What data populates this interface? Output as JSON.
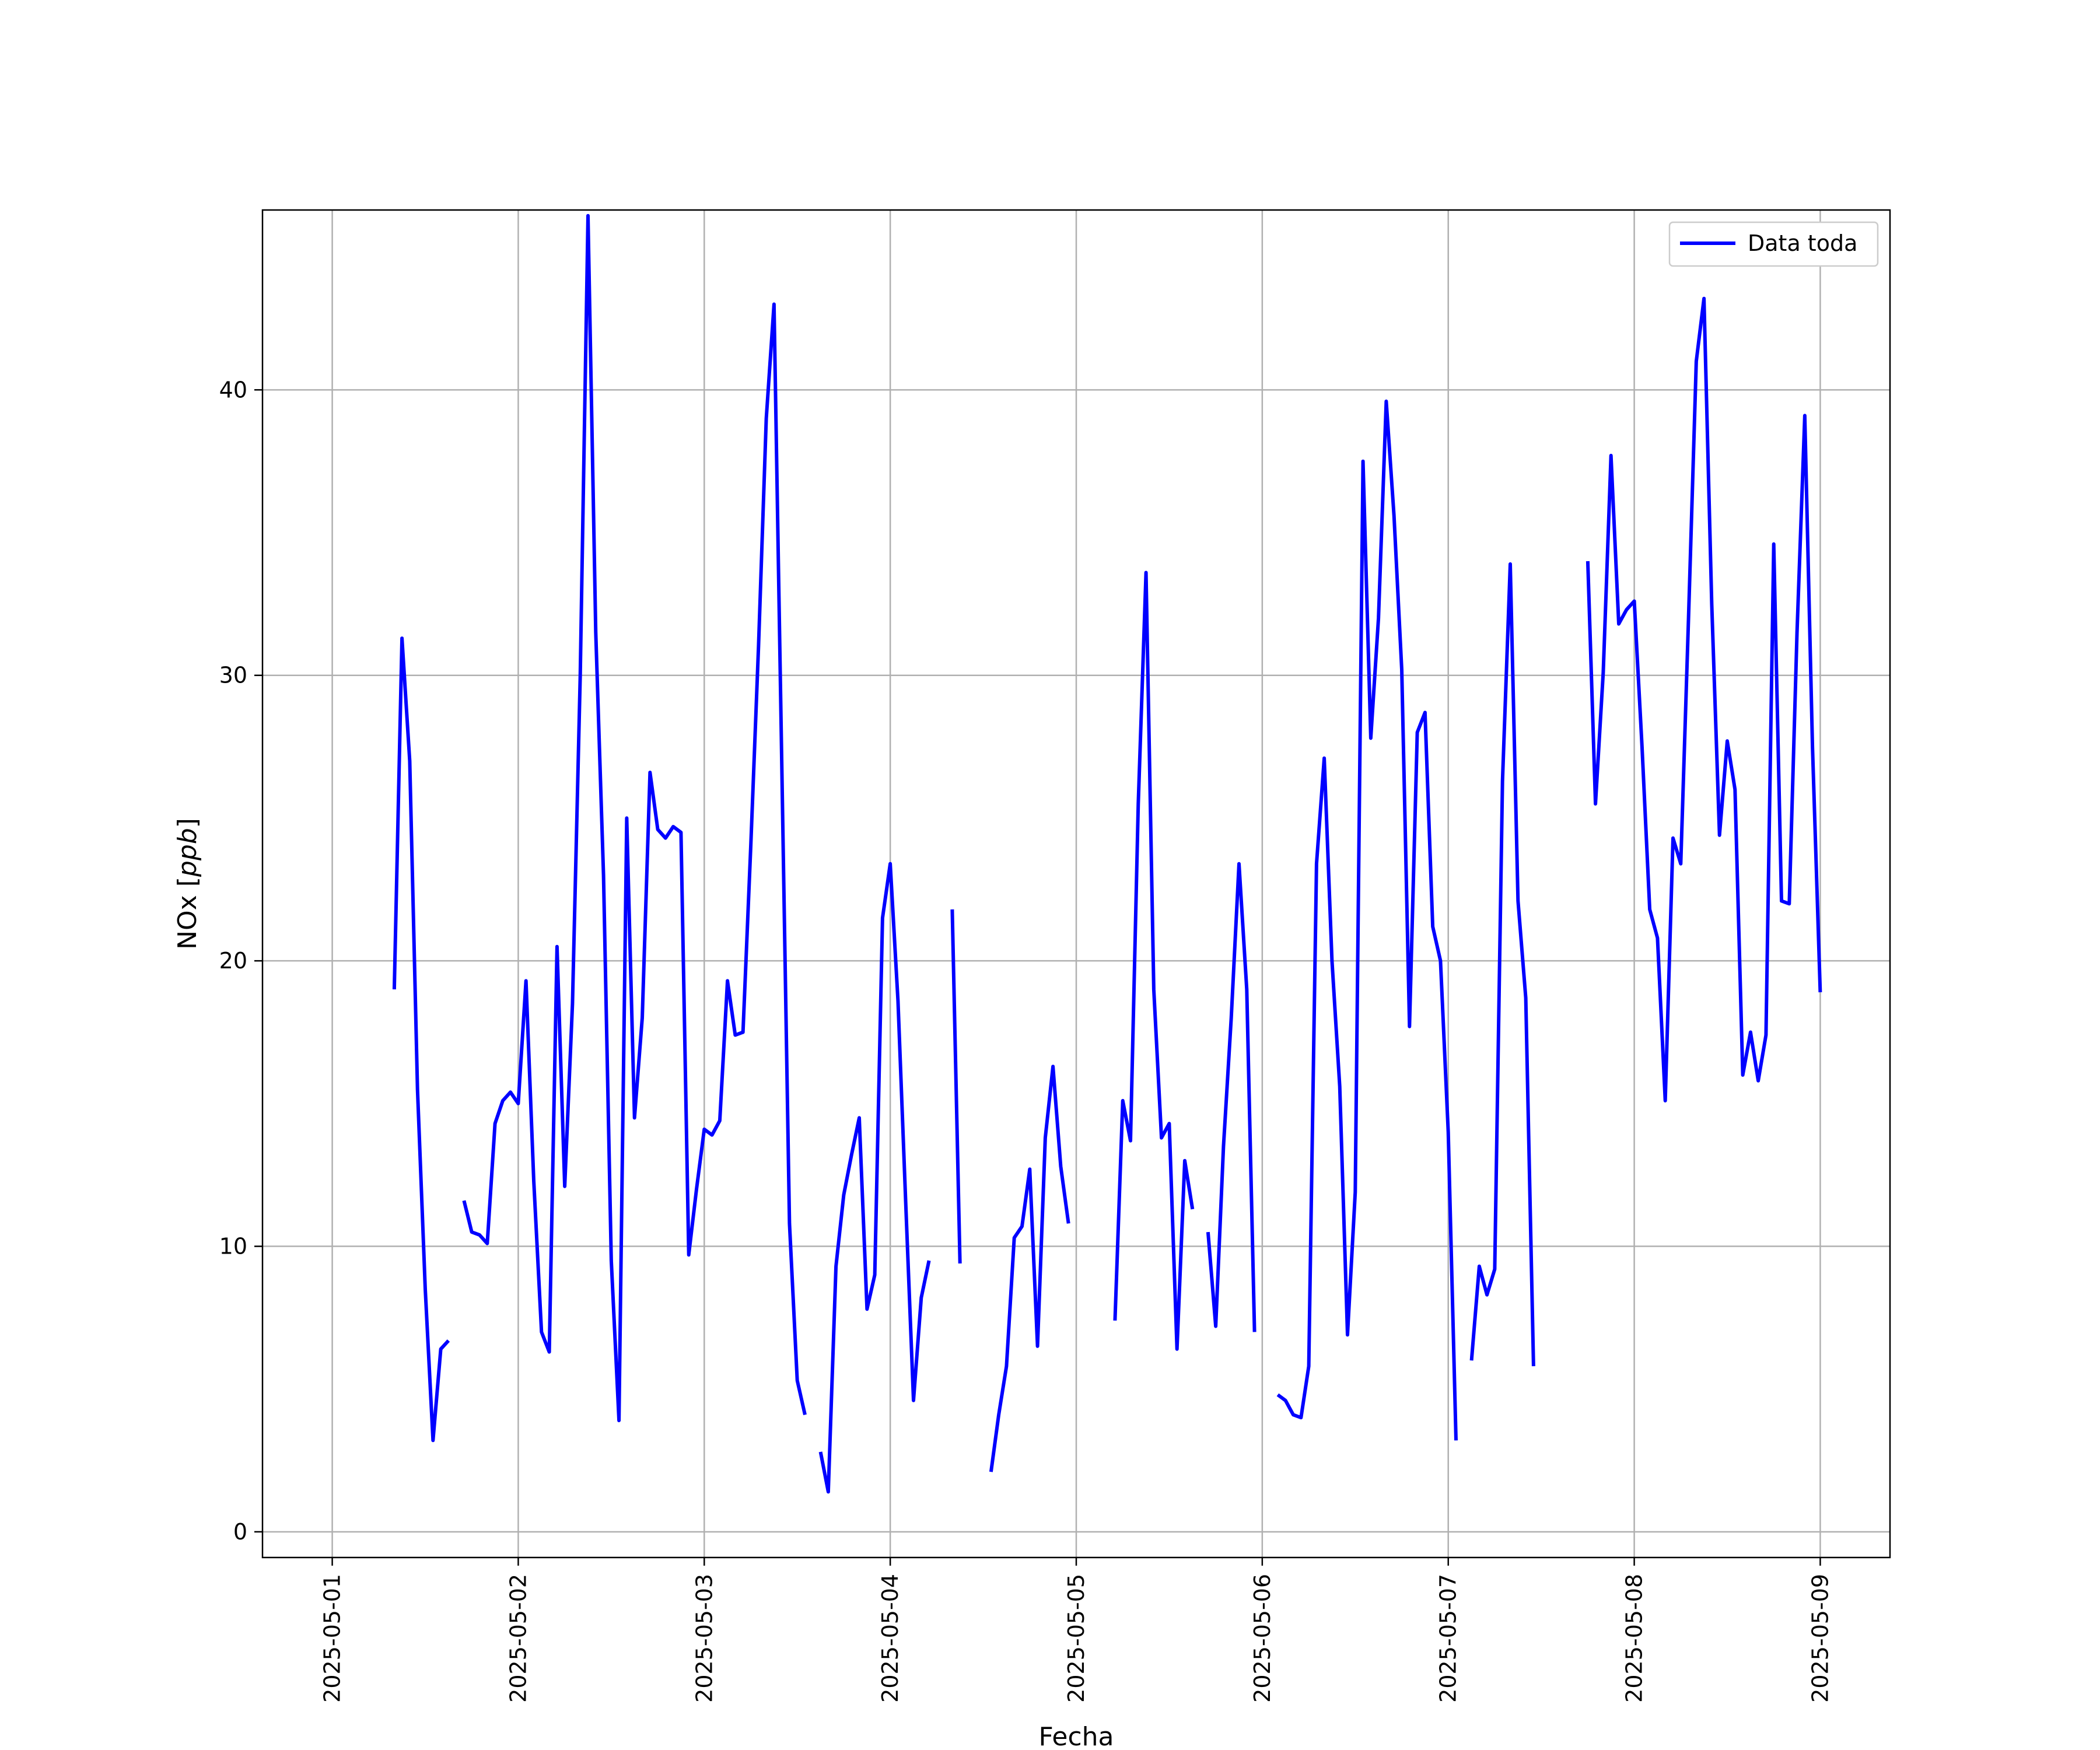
{
  "chart_data": {
    "type": "line",
    "title": "",
    "xlabel": "Fecha",
    "ylabel": "NOx [",
    "ylabel_italic": "ppb",
    "ylabel_close": "]",
    "xlim": [
      "2025-04-30T15:00",
      "2025-05-09T09:00"
    ],
    "ylim": [
      -0.9,
      46.3
    ],
    "grid": true,
    "legend_position": "top-right",
    "line_color": "#0000ff",
    "x_ticks": [
      "2025-05-01",
      "2025-05-02",
      "2025-05-03",
      "2025-05-04",
      "2025-05-05",
      "2025-05-06",
      "2025-05-07",
      "2025-05-08",
      "2025-05-09"
    ],
    "y_ticks": [
      0,
      10,
      20,
      30,
      40
    ],
    "series": [
      {
        "name": "Data toda",
        "points": [
          {
            "x": "2025-05-01T08:00",
            "y": 19.0
          },
          {
            "x": "2025-05-01T09:00",
            "y": 31.3
          },
          {
            "x": "2025-05-01T10:00",
            "y": 27.0
          },
          {
            "x": "2025-05-01T11:00",
            "y": 15.5
          },
          {
            "x": "2025-05-01T12:00",
            "y": 8.5
          },
          {
            "x": "2025-05-01T13:00",
            "y": 3.2
          },
          {
            "x": "2025-05-01T14:00",
            "y": 6.4
          },
          {
            "x": "2025-05-01T15:00",
            "y": 6.7
          },
          {
            "x": "2025-05-01T16:00",
            "y": null
          },
          {
            "x": "2025-05-01T17:00",
            "y": 11.6
          },
          {
            "x": "2025-05-01T18:00",
            "y": 10.5
          },
          {
            "x": "2025-05-01T19:00",
            "y": 10.4
          },
          {
            "x": "2025-05-01T20:00",
            "y": 10.1
          },
          {
            "x": "2025-05-01T21:00",
            "y": 14.3
          },
          {
            "x": "2025-05-01T22:00",
            "y": 15.1
          },
          {
            "x": "2025-05-01T23:00",
            "y": 15.4
          },
          {
            "x": "2025-05-02T00:00",
            "y": 15.0
          },
          {
            "x": "2025-05-02T01:00",
            "y": 19.3
          },
          {
            "x": "2025-05-02T02:00",
            "y": 12.3
          },
          {
            "x": "2025-05-02T03:00",
            "y": 7.0
          },
          {
            "x": "2025-05-02T04:00",
            "y": 6.3
          },
          {
            "x": "2025-05-02T05:00",
            "y": 20.5
          },
          {
            "x": "2025-05-02T06:00",
            "y": 12.1
          },
          {
            "x": "2025-05-02T07:00",
            "y": 18.5
          },
          {
            "x": "2025-05-02T08:00",
            "y": 30.0
          },
          {
            "x": "2025-05-02T09:00",
            "y": 46.1
          },
          {
            "x": "2025-05-02T10:00",
            "y": 31.5
          },
          {
            "x": "2025-05-02T11:00",
            "y": 23.0
          },
          {
            "x": "2025-05-02T12:00",
            "y": 9.5
          },
          {
            "x": "2025-05-02T13:00",
            "y": 3.9
          },
          {
            "x": "2025-05-02T14:00",
            "y": 25.0
          },
          {
            "x": "2025-05-02T15:00",
            "y": 14.5
          },
          {
            "x": "2025-05-02T16:00",
            "y": 18.0
          },
          {
            "x": "2025-05-02T17:00",
            "y": 26.6
          },
          {
            "x": "2025-05-02T18:00",
            "y": 24.6
          },
          {
            "x": "2025-05-02T19:00",
            "y": 24.3
          },
          {
            "x": "2025-05-02T20:00",
            "y": 24.7
          },
          {
            "x": "2025-05-02T21:00",
            "y": 24.5
          },
          {
            "x": "2025-05-02T22:00",
            "y": 9.7
          },
          {
            "x": "2025-05-02T23:00",
            "y": 12.0
          },
          {
            "x": "2025-05-03T00:00",
            "y": 14.1
          },
          {
            "x": "2025-05-03T01:00",
            "y": 13.9
          },
          {
            "x": "2025-05-03T02:00",
            "y": 14.4
          },
          {
            "x": "2025-05-03T03:00",
            "y": 19.3
          },
          {
            "x": "2025-05-03T04:00",
            "y": 17.4
          },
          {
            "x": "2025-05-03T05:00",
            "y": 17.5
          },
          {
            "x": "2025-05-03T06:00",
            "y": 24.0
          },
          {
            "x": "2025-05-03T07:00",
            "y": 31.0
          },
          {
            "x": "2025-05-03T08:00",
            "y": 39.0
          },
          {
            "x": "2025-05-03T09:00",
            "y": 43.0
          },
          {
            "x": "2025-05-03T10:00",
            "y": 27.0
          },
          {
            "x": "2025-05-03T11:00",
            "y": 10.8
          },
          {
            "x": "2025-05-03T12:00",
            "y": 5.3
          },
          {
            "x": "2025-05-03T13:00",
            "y": 4.1
          },
          {
            "x": "2025-05-03T14:00",
            "y": null
          },
          {
            "x": "2025-05-03T15:00",
            "y": 2.8
          },
          {
            "x": "2025-05-03T16:00",
            "y": 1.4
          },
          {
            "x": "2025-05-03T17:00",
            "y": 9.3
          },
          {
            "x": "2025-05-03T18:00",
            "y": 11.8
          },
          {
            "x": "2025-05-03T19:00",
            "y": 13.2
          },
          {
            "x": "2025-05-03T20:00",
            "y": 14.5
          },
          {
            "x": "2025-05-03T21:00",
            "y": 7.8
          },
          {
            "x": "2025-05-03T22:00",
            "y": 9.0
          },
          {
            "x": "2025-05-03T23:00",
            "y": 21.5
          },
          {
            "x": "2025-05-04T00:00",
            "y": 23.4
          },
          {
            "x": "2025-05-04T01:00",
            "y": 18.6
          },
          {
            "x": "2025-05-04T02:00",
            "y": 11.5
          },
          {
            "x": "2025-05-04T03:00",
            "y": 4.6
          },
          {
            "x": "2025-05-04T04:00",
            "y": 8.2
          },
          {
            "x": "2025-05-04T05:00",
            "y": 9.5
          },
          {
            "x": "2025-05-04T06:00",
            "y": null
          },
          {
            "x": "2025-05-04T08:00",
            "y": 21.8
          },
          {
            "x": "2025-05-04T09:00",
            "y": 9.4
          },
          {
            "x": "2025-05-04T10:00",
            "y": null
          },
          {
            "x": "2025-05-04T13:00",
            "y": 2.1
          },
          {
            "x": "2025-05-04T14:00",
            "y": 4.1
          },
          {
            "x": "2025-05-04T15:00",
            "y": 5.8
          },
          {
            "x": "2025-05-04T16:00",
            "y": 10.3
          },
          {
            "x": "2025-05-04T17:00",
            "y": 10.7
          },
          {
            "x": "2025-05-04T18:00",
            "y": 12.7
          },
          {
            "x": "2025-05-04T19:00",
            "y": 6.5
          },
          {
            "x": "2025-05-04T20:00",
            "y": 13.8
          },
          {
            "x": "2025-05-04T21:00",
            "y": 16.3
          },
          {
            "x": "2025-05-04T22:00",
            "y": 12.8
          },
          {
            "x": "2025-05-04T23:00",
            "y": 10.8
          },
          {
            "x": "2025-05-05T00:00",
            "y": null
          },
          {
            "x": "2025-05-05T05:00",
            "y": 7.4
          },
          {
            "x": "2025-05-05T06:00",
            "y": 15.1
          },
          {
            "x": "2025-05-05T07:00",
            "y": 13.7
          },
          {
            "x": "2025-05-05T08:00",
            "y": 25.5
          },
          {
            "x": "2025-05-05T09:00",
            "y": 33.6
          },
          {
            "x": "2025-05-05T10:00",
            "y": 19.0
          },
          {
            "x": "2025-05-05T11:00",
            "y": 13.8
          },
          {
            "x": "2025-05-05T12:00",
            "y": 14.3
          },
          {
            "x": "2025-05-05T13:00",
            "y": 6.4
          },
          {
            "x": "2025-05-05T14:00",
            "y": 13.0
          },
          {
            "x": "2025-05-05T15:00",
            "y": 11.3
          },
          {
            "x": "2025-05-05T16:00",
            "y": null
          },
          {
            "x": "2025-05-05T17:00",
            "y": 10.5
          },
          {
            "x": "2025-05-05T18:00",
            "y": 7.2
          },
          {
            "x": "2025-05-05T19:00",
            "y": 13.5
          },
          {
            "x": "2025-05-05T20:00",
            "y": 18.0
          },
          {
            "x": "2025-05-05T21:00",
            "y": 23.4
          },
          {
            "x": "2025-05-05T22:00",
            "y": 19.0
          },
          {
            "x": "2025-05-05T23:00",
            "y": 7.0
          },
          {
            "x": "2025-05-06T00:00",
            "y": null
          },
          {
            "x": "2025-05-06T02:00",
            "y": 4.8
          },
          {
            "x": "2025-05-06T03:00",
            "y": 4.6
          },
          {
            "x": "2025-05-06T04:00",
            "y": 4.1
          },
          {
            "x": "2025-05-06T05:00",
            "y": 4.0
          },
          {
            "x": "2025-05-06T06:00",
            "y": 5.8
          },
          {
            "x": "2025-05-06T07:00",
            "y": 23.4
          },
          {
            "x": "2025-05-06T08:00",
            "y": 27.1
          },
          {
            "x": "2025-05-06T09:00",
            "y": 20.0
          },
          {
            "x": "2025-05-06T10:00",
            "y": 15.6
          },
          {
            "x": "2025-05-06T11:00",
            "y": 6.9
          },
          {
            "x": "2025-05-06T12:00",
            "y": 11.9
          },
          {
            "x": "2025-05-06T13:00",
            "y": 37.5
          },
          {
            "x": "2025-05-06T14:00",
            "y": 27.8
          },
          {
            "x": "2025-05-06T15:00",
            "y": 32.0
          },
          {
            "x": "2025-05-06T16:00",
            "y": 39.6
          },
          {
            "x": "2025-05-06T17:00",
            "y": 35.6
          },
          {
            "x": "2025-05-06T18:00",
            "y": 30.2
          },
          {
            "x": "2025-05-06T19:00",
            "y": 17.7
          },
          {
            "x": "2025-05-06T20:00",
            "y": 28.0
          },
          {
            "x": "2025-05-06T21:00",
            "y": 28.7
          },
          {
            "x": "2025-05-06T22:00",
            "y": 21.2
          },
          {
            "x": "2025-05-06T23:00",
            "y": 20.0
          },
          {
            "x": "2025-05-07T00:00",
            "y": 14.0
          },
          {
            "x": "2025-05-07T01:00",
            "y": 3.2
          },
          {
            "x": "2025-05-07T02:00",
            "y": null
          },
          {
            "x": "2025-05-07T03:00",
            "y": 6.0
          },
          {
            "x": "2025-05-07T04:00",
            "y": 9.3
          },
          {
            "x": "2025-05-07T05:00",
            "y": 8.3
          },
          {
            "x": "2025-05-07T06:00",
            "y": 9.2
          },
          {
            "x": "2025-05-07T07:00",
            "y": 26.3
          },
          {
            "x": "2025-05-07T08:00",
            "y": 33.9
          },
          {
            "x": "2025-05-07T09:00",
            "y": 22.1
          },
          {
            "x": "2025-05-07T10:00",
            "y": 18.7
          },
          {
            "x": "2025-05-07T11:00",
            "y": 5.8
          },
          {
            "x": "2025-05-07T12:00",
            "y": null
          },
          {
            "x": "2025-05-07T18:00",
            "y": 34.0
          },
          {
            "x": "2025-05-07T19:00",
            "y": 25.5
          },
          {
            "x": "2025-05-07T20:00",
            "y": 30.1
          },
          {
            "x": "2025-05-07T21:00",
            "y": 37.7
          },
          {
            "x": "2025-05-07T22:00",
            "y": 31.8
          },
          {
            "x": "2025-05-07T23:00",
            "y": 32.3
          },
          {
            "x": "2025-05-08T00:00",
            "y": 32.6
          },
          {
            "x": "2025-05-08T01:00",
            "y": 27.5
          },
          {
            "x": "2025-05-08T02:00",
            "y": 21.8
          },
          {
            "x": "2025-05-08T03:00",
            "y": 20.8
          },
          {
            "x": "2025-05-08T04:00",
            "y": 15.1
          },
          {
            "x": "2025-05-08T05:00",
            "y": 24.3
          },
          {
            "x": "2025-05-08T06:00",
            "y": 23.4
          },
          {
            "x": "2025-05-08T07:00",
            "y": 32.0
          },
          {
            "x": "2025-05-08T08:00",
            "y": 41.0
          },
          {
            "x": "2025-05-08T09:00",
            "y": 43.2
          },
          {
            "x": "2025-05-08T10:00",
            "y": 32.5
          },
          {
            "x": "2025-05-08T11:00",
            "y": 24.4
          },
          {
            "x": "2025-05-08T12:00",
            "y": 27.7
          },
          {
            "x": "2025-05-08T13:00",
            "y": 26.0
          },
          {
            "x": "2025-05-08T14:00",
            "y": 16.0
          },
          {
            "x": "2025-05-08T15:00",
            "y": 17.5
          },
          {
            "x": "2025-05-08T16:00",
            "y": 15.8
          },
          {
            "x": "2025-05-08T17:00",
            "y": 17.4
          },
          {
            "x": "2025-05-08T18:00",
            "y": 34.6
          },
          {
            "x": "2025-05-08T19:00",
            "y": 22.1
          },
          {
            "x": "2025-05-08T20:00",
            "y": 22.0
          },
          {
            "x": "2025-05-08T21:00",
            "y": 31.5
          },
          {
            "x": "2025-05-08T22:00",
            "y": 39.1
          },
          {
            "x": "2025-05-08T23:00",
            "y": 27.5
          },
          {
            "x": "2025-05-09T00:00",
            "y": 18.9
          }
        ]
      }
    ]
  }
}
